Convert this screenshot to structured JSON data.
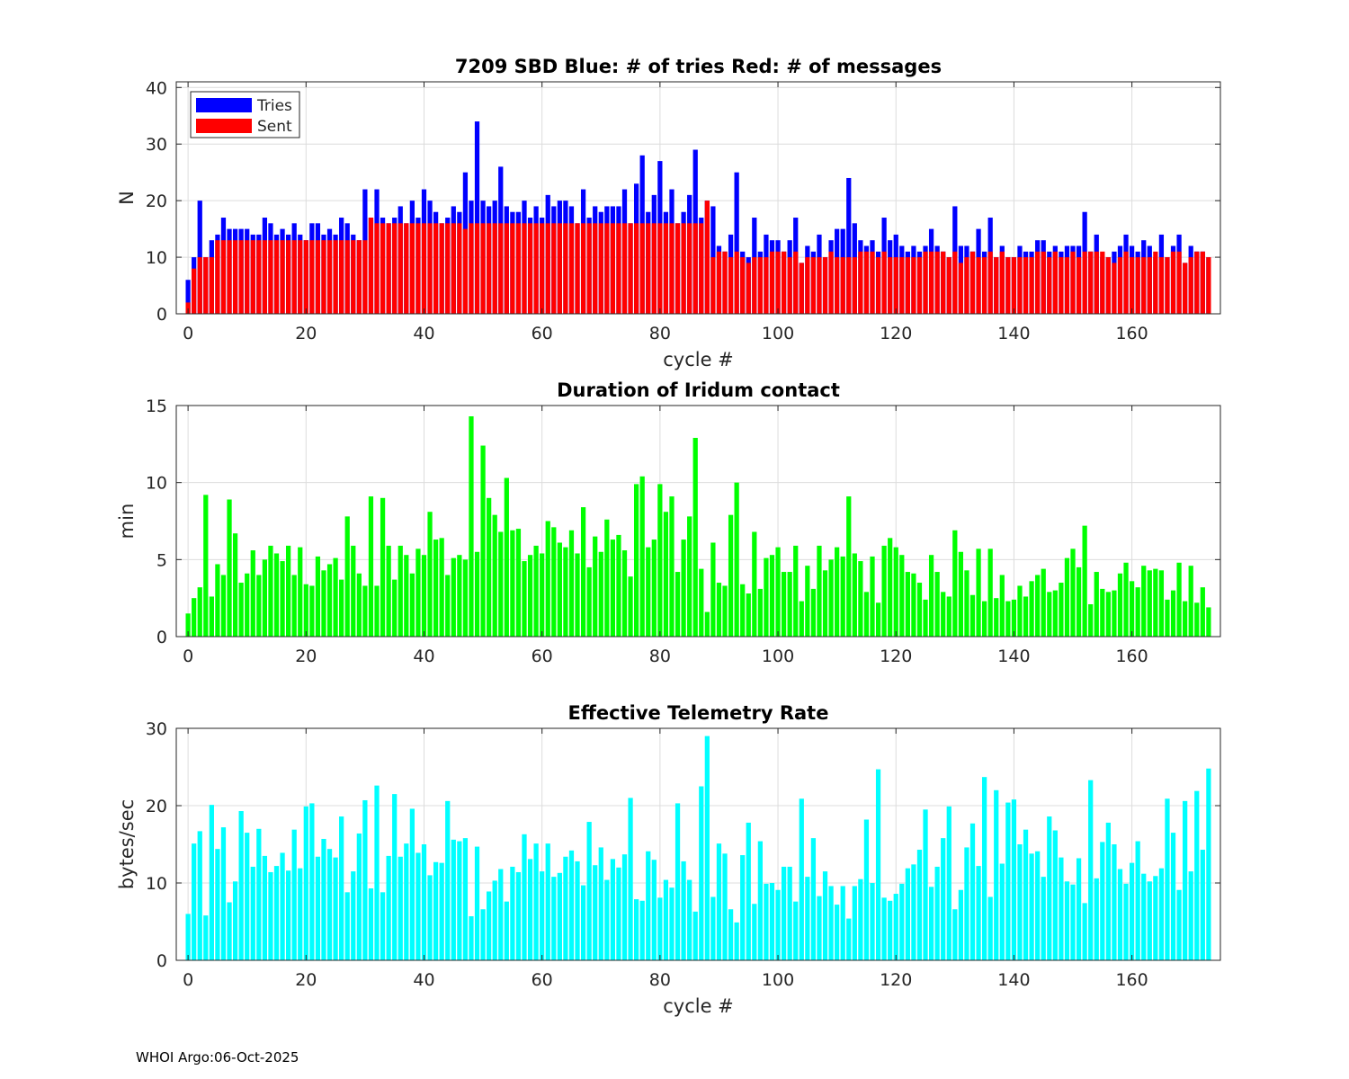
{
  "footer": "WHOI Argo:06-Oct-2025",
  "chart_data": [
    {
      "type": "bar",
      "title": "7209 SBD  Blue: # of tries   Red: # of messages",
      "xlabel": "cycle #",
      "ylabel": "N",
      "xlim": [
        -2,
        175
      ],
      "ylim": [
        0,
        41
      ],
      "xticks": [
        0,
        20,
        40,
        60,
        80,
        100,
        120,
        140,
        160
      ],
      "yticks": [
        0,
        10,
        20,
        30,
        40
      ],
      "legend": {
        "position": "top-left",
        "entries": [
          "Tries",
          "Sent"
        ]
      },
      "series": [
        {
          "name": "Tries",
          "color": "#0000ff",
          "values": [
            6,
            10,
            20,
            10,
            13,
            14,
            17,
            15,
            15,
            15,
            15,
            14,
            14,
            17,
            16,
            14,
            15,
            14,
            16,
            14,
            13,
            16,
            16,
            14,
            15,
            14,
            17,
            16,
            14,
            13,
            22,
            17,
            22,
            17,
            16,
            17,
            19,
            16,
            20,
            17,
            22,
            20,
            18,
            16,
            17,
            19,
            18,
            25,
            20,
            34,
            20,
            19,
            20,
            26,
            19,
            18,
            18,
            20,
            17,
            19,
            17,
            21,
            19,
            20,
            20,
            19,
            16,
            22,
            17,
            19,
            18,
            19,
            19,
            19,
            22,
            16,
            23,
            28,
            18,
            21,
            27,
            18,
            22,
            16,
            18,
            21,
            29,
            17,
            20,
            19,
            12,
            11,
            14,
            25,
            11,
            10,
            17,
            11,
            14,
            13,
            13,
            11,
            13,
            17,
            9,
            12,
            11,
            14,
            10,
            13,
            15,
            15,
            24,
            16,
            13,
            12,
            13,
            11,
            17,
            13,
            14,
            12,
            11,
            12,
            11,
            12,
            15,
            12,
            11,
            10,
            19,
            12,
            12,
            11,
            15,
            11,
            17,
            10,
            12,
            10,
            10,
            12,
            11,
            11,
            13,
            13,
            11,
            12,
            11,
            12,
            12,
            12,
            18,
            11,
            14,
            10,
            10,
            11,
            12,
            14,
            12,
            11,
            13,
            12,
            10,
            14,
            10,
            12,
            14,
            9,
            12,
            11,
            11,
            10
          ]
        },
        {
          "name": "Sent",
          "color": "#ff0000",
          "values": [
            2,
            8,
            10,
            10,
            10,
            13,
            13,
            13,
            13,
            13,
            13,
            13,
            13,
            13,
            13,
            13,
            13,
            13,
            13,
            13,
            13,
            13,
            13,
            13,
            13,
            13,
            13,
            13,
            13,
            13,
            13,
            17,
            16,
            16,
            16,
            16,
            16,
            16,
            16,
            16,
            16,
            16,
            16,
            16,
            16,
            16,
            16,
            15,
            16,
            16,
            16,
            16,
            16,
            16,
            16,
            16,
            16,
            16,
            16,
            16,
            16,
            16,
            16,
            16,
            16,
            16,
            16,
            16,
            16,
            16,
            16,
            16,
            16,
            16,
            16,
            16,
            16,
            16,
            16,
            16,
            16,
            16,
            16,
            16,
            16,
            16,
            16,
            16,
            20,
            10,
            11,
            11,
            10,
            11,
            10,
            9,
            10,
            10,
            10,
            11,
            11,
            11,
            10,
            11,
            9,
            10,
            10,
            10,
            10,
            11,
            10,
            10,
            10,
            10,
            11,
            11,
            11,
            10,
            11,
            10,
            10,
            10,
            10,
            10,
            10,
            11,
            11,
            11,
            11,
            10,
            11,
            9,
            10,
            11,
            10,
            10,
            11,
            10,
            11,
            10,
            10,
            10,
            10,
            10,
            11,
            11,
            10,
            11,
            10,
            10,
            11,
            10,
            11,
            11,
            11,
            11,
            10,
            9,
            10,
            11,
            10,
            10,
            10,
            10,
            11,
            10,
            10,
            11,
            11,
            9,
            10,
            11,
            11,
            10
          ]
        }
      ]
    },
    {
      "type": "bar",
      "title": "Duration of Iridum contact",
      "xlabel": "",
      "ylabel": "min",
      "xlim": [
        -2,
        175
      ],
      "ylim": [
        0,
        15
      ],
      "xticks": [
        0,
        20,
        40,
        60,
        80,
        100,
        120,
        140,
        160
      ],
      "yticks": [
        0,
        5,
        10,
        15
      ],
      "series": [
        {
          "name": "duration",
          "color": "#00ff00",
          "values": [
            1.5,
            2.5,
            3.2,
            9.2,
            2.6,
            4.7,
            4.0,
            8.9,
            6.7,
            3.5,
            4.1,
            5.6,
            4.0,
            5.0,
            5.9,
            5.4,
            4.9,
            5.9,
            4.0,
            5.8,
            3.4,
            3.3,
            5.2,
            4.3,
            4.7,
            5.1,
            3.7,
            7.8,
            5.9,
            4.1,
            3.3,
            9.1,
            3.3,
            9.0,
            5.9,
            3.7,
            5.9,
            5.3,
            4.1,
            5.7,
            5.3,
            8.1,
            6.3,
            6.4,
            4.0,
            5.1,
            5.3,
            5.0,
            14.3,
            5.5,
            12.4,
            9.0,
            7.9,
            6.8,
            10.3,
            6.9,
            7.0,
            4.9,
            5.3,
            5.9,
            5.4,
            7.5,
            7.1,
            6.1,
            5.8,
            6.9,
            5.4,
            8.4,
            4.5,
            6.5,
            5.5,
            7.6,
            6.3,
            6.6,
            5.6,
            3.9,
            9.9,
            10.4,
            5.8,
            6.3,
            9.9,
            8.1,
            9.1,
            4.2,
            6.3,
            7.8,
            12.9,
            4.4,
            1.6,
            6.1,
            3.5,
            3.3,
            7.9,
            10.0,
            3.4,
            2.8,
            6.8,
            3.1,
            5.1,
            5.3,
            5.8,
            4.2,
            4.2,
            5.9,
            2.3,
            4.6,
            3.1,
            5.9,
            4.3,
            5.0,
            5.8,
            5.2,
            9.1,
            5.4,
            4.9,
            2.9,
            5.2,
            2.2,
            5.9,
            6.4,
            5.8,
            5.3,
            4.2,
            4.1,
            3.5,
            2.4,
            5.3,
            4.2,
            2.9,
            2.6,
            6.9,
            5.5,
            4.3,
            2.7,
            5.7,
            2.3,
            5.7,
            2.5,
            4.0,
            2.3,
            2.4,
            3.3,
            2.6,
            3.6,
            4.0,
            4.4,
            2.9,
            3.0,
            3.5,
            5.1,
            5.7,
            4.5,
            7.2,
            2.1,
            4.2,
            3.1,
            2.9,
            3.0,
            4.1,
            4.8,
            3.6,
            3.2,
            4.6,
            4.3,
            4.4,
            4.3,
            2.4,
            3.0,
            4.8,
            2.3,
            4.6,
            2.2,
            3.2,
            1.9
          ]
        }
      ]
    },
    {
      "type": "bar",
      "title": "Effective Telemetry Rate",
      "xlabel": "cycle #",
      "ylabel": "bytes/sec",
      "xlim": [
        -2,
        175
      ],
      "ylim": [
        0,
        30
      ],
      "xticks": [
        0,
        20,
        40,
        60,
        80,
        100,
        120,
        140,
        160
      ],
      "yticks": [
        0,
        10,
        20,
        30
      ],
      "series": [
        {
          "name": "rate",
          "color": "#00ffff",
          "values": [
            6.0,
            15.1,
            16.7,
            5.8,
            20.1,
            14.4,
            17.2,
            7.5,
            10.2,
            19.3,
            16.5,
            12.1,
            17.0,
            13.5,
            11.4,
            12.2,
            13.9,
            11.6,
            16.9,
            11.9,
            19.9,
            20.3,
            13.4,
            15.7,
            14.4,
            13.3,
            18.6,
            8.8,
            11.5,
            16.4,
            20.7,
            9.3,
            22.6,
            8.8,
            13.5,
            21.5,
            13.4,
            15.1,
            19.6,
            13.9,
            15.0,
            11.0,
            12.7,
            12.6,
            20.6,
            15.6,
            15.4,
            15.8,
            5.7,
            14.7,
            6.6,
            8.9,
            10.3,
            11.8,
            7.6,
            12.1,
            11.4,
            16.3,
            13.1,
            15.1,
            11.5,
            15.1,
            10.8,
            11.3,
            13.4,
            14.2,
            12.8,
            9.7,
            17.9,
            12.3,
            14.6,
            10.4,
            13.1,
            12.0,
            13.7,
            21.0,
            7.9,
            7.7,
            14.1,
            13.0,
            8.1,
            10.4,
            9.4,
            20.3,
            12.8,
            10.4,
            6.3,
            22.5,
            29.0,
            8.2,
            15.1,
            13.8,
            6.6,
            4.9,
            13.6,
            17.8,
            7.3,
            15.4,
            9.9,
            10.0,
            9.1,
            12.1,
            12.1,
            7.6,
            20.9,
            10.8,
            15.8,
            8.3,
            11.5,
            9.6,
            7.2,
            9.6,
            5.4,
            9.6,
            10.5,
            18.2,
            10.0,
            24.7,
            8.1,
            7.7,
            8.6,
            9.9,
            11.9,
            12.4,
            14.3,
            19.5,
            9.5,
            12.1,
            15.8,
            19.9,
            6.6,
            9.1,
            14.6,
            17.7,
            12.2,
            23.7,
            8.2,
            22.0,
            12.5,
            20.4,
            20.8,
            15.0,
            16.9,
            13.8,
            14.1,
            10.8,
            18.6,
            16.8,
            13.3,
            10.2,
            9.8,
            13.2,
            7.4,
            23.3,
            10.6,
            15.3,
            17.8,
            15.0,
            11.8,
            9.9,
            12.6,
            15.4,
            11.2,
            10.2,
            10.9,
            11.9,
            20.9,
            16.5,
            9.1,
            20.6,
            11.5,
            21.9,
            14.3,
            24.8
          ]
        }
      ]
    }
  ]
}
